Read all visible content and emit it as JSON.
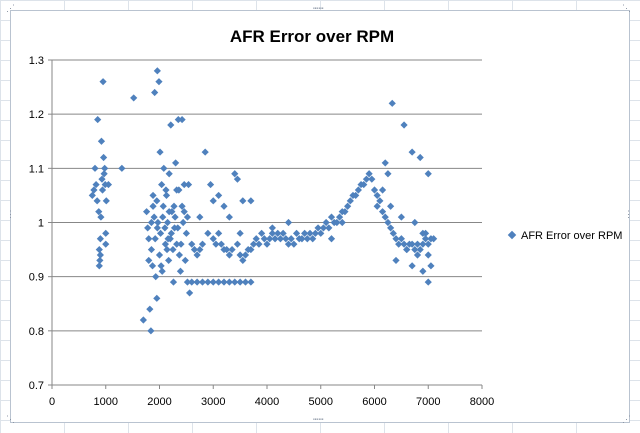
{
  "chart_data": {
    "type": "scatter",
    "title": "AFR Error over RPM",
    "xlabel": "",
    "ylabel": "",
    "xlim": [
      0,
      8000
    ],
    "ylim": [
      0.7,
      1.3
    ],
    "x_ticks": [
      "0",
      "1000",
      "2000",
      "3000",
      "4000",
      "5000",
      "6000",
      "7000",
      "8000"
    ],
    "y_ticks": [
      "0.7",
      "0.8",
      "0.9",
      "1",
      "1.1",
      "1.2",
      "1.3"
    ],
    "grid": "horizontal",
    "legend_position": "right",
    "color": "#4f81bd",
    "marker": "diamond",
    "series": [
      {
        "name": "AFR Error over RPM",
        "points": [
          [
            750,
            1.05
          ],
          [
            780,
            1.06
          ],
          [
            800,
            1.1
          ],
          [
            820,
            1.07
          ],
          [
            840,
            1.04
          ],
          [
            850,
            1.19
          ],
          [
            870,
            1.02
          ],
          [
            880,
            0.95
          ],
          [
            890,
            0.93
          ],
          [
            900,
            0.94
          ],
          [
            910,
            1.01
          ],
          [
            920,
            1.15
          ],
          [
            930,
            1.08
          ],
          [
            940,
            1.06
          ],
          [
            950,
            1.26
          ],
          [
            960,
            1.12
          ],
          [
            970,
            1.09
          ],
          [
            980,
            1.1
          ],
          [
            990,
            1.07
          ],
          [
            1000,
            0.98
          ],
          [
            1010,
            1.04
          ],
          [
            1050,
            1.07
          ],
          [
            1300,
            1.1
          ],
          [
            1520,
            1.23
          ],
          [
            880,
            0.92
          ],
          [
            900,
            0.97
          ],
          [
            1000,
            0.96
          ],
          [
            1700,
            0.82
          ],
          [
            1760,
            1.02
          ],
          [
            1780,
            0.99
          ],
          [
            1800,
            0.97
          ],
          [
            1820,
            0.84
          ],
          [
            1840,
            0.8
          ],
          [
            1850,
            0.95
          ],
          [
            1870,
            0.92
          ],
          [
            1880,
            1.03
          ],
          [
            1900,
            1.01
          ],
          [
            1910,
            1.24
          ],
          [
            1930,
            0.9
          ],
          [
            1950,
            0.86
          ],
          [
            1960,
            1.28
          ],
          [
            1970,
            1.0
          ],
          [
            1990,
            1.26
          ],
          [
            2000,
            0.94
          ],
          [
            2010,
            1.13
          ],
          [
            2020,
            0.98
          ],
          [
            2040,
            1.07
          ],
          [
            2050,
            0.91
          ],
          [
            2070,
            1.03
          ],
          [
            2080,
            1.1
          ],
          [
            2100,
            0.99
          ],
          [
            2110,
            0.96
          ],
          [
            2130,
            1.05
          ],
          [
            2150,
            1.0
          ],
          [
            2170,
            0.93
          ],
          [
            2180,
            1.09
          ],
          [
            2200,
            0.97
          ],
          [
            2210,
            1.18
          ],
          [
            2230,
            1.02
          ],
          [
            2250,
            0.95
          ],
          [
            2270,
            1.03
          ],
          [
            2290,
            1.01
          ],
          [
            2300,
            1.11
          ],
          [
            2320,
            1.06
          ],
          [
            2340,
            0.99
          ],
          [
            2350,
            1.19
          ],
          [
            2370,
            0.94
          ],
          [
            2390,
            0.91
          ],
          [
            2400,
            0.96
          ],
          [
            2420,
            1.19
          ],
          [
            2440,
            1.0
          ],
          [
            2460,
            1.07
          ],
          [
            2480,
            0.93
          ],
          [
            2500,
            0.98
          ],
          [
            2520,
            0.89
          ],
          [
            2540,
            1.07
          ],
          [
            2560,
            0.87
          ],
          [
            1800,
            0.93
          ],
          [
            1880,
            1.05
          ],
          [
            1960,
            0.99
          ],
          [
            2060,
            1.01
          ],
          [
            2160,
            0.97
          ],
          [
            2260,
            0.89
          ],
          [
            2360,
            1.06
          ],
          [
            2460,
            1.02
          ],
          [
            1850,
            1.0
          ],
          [
            1950,
            1.04
          ],
          [
            2030,
            0.92
          ],
          [
            2120,
            1.06
          ],
          [
            2220,
            0.98
          ],
          [
            2320,
            0.96
          ],
          [
            2420,
            1.03
          ],
          [
            2520,
            1.01
          ],
          [
            1920,
            0.97
          ],
          [
            2140,
            0.95
          ],
          [
            2280,
            0.99
          ],
          [
            2180,
            1.02
          ],
          [
            2600,
            0.96
          ],
          [
            2650,
            0.95
          ],
          [
            2700,
            0.94
          ],
          [
            2750,
            0.95
          ],
          [
            2800,
            0.96
          ],
          [
            2850,
            1.13
          ],
          [
            2900,
            0.98
          ],
          [
            2950,
            1.07
          ],
          [
            3000,
            0.97
          ],
          [
            3050,
            0.96
          ],
          [
            3100,
            1.05
          ],
          [
            3150,
            0.96
          ],
          [
            3200,
            0.95
          ],
          [
            3250,
            0.95
          ],
          [
            3300,
            0.94
          ],
          [
            3350,
            0.95
          ],
          [
            3400,
            1.09
          ],
          [
            3450,
            0.96
          ],
          [
            3500,
            0.94
          ],
          [
            3550,
            1.04
          ],
          [
            3600,
            0.94
          ],
          [
            3650,
            0.95
          ],
          [
            3700,
            0.95
          ],
          [
            3750,
            0.96
          ],
          [
            3800,
            0.97
          ],
          [
            3850,
            0.96
          ],
          [
            3900,
            0.98
          ],
          [
            3950,
            0.97
          ],
          [
            4000,
            0.96
          ],
          [
            4050,
            0.97
          ],
          [
            4100,
            0.98
          ],
          [
            4150,
            0.97
          ],
          [
            4200,
            0.98
          ],
          [
            4250,
            0.97
          ],
          [
            4300,
            0.98
          ],
          [
            4350,
            0.97
          ],
          [
            4400,
            0.96
          ],
          [
            4450,
            0.97
          ],
          [
            4500,
            0.96
          ],
          [
            4550,
            0.98
          ],
          [
            4600,
            0.97
          ],
          [
            4650,
            0.97
          ],
          [
            4700,
            0.98
          ],
          [
            4750,
            0.97
          ],
          [
            4800,
            0.98
          ],
          [
            4850,
            0.97
          ],
          [
            4900,
            0.98
          ],
          [
            4950,
            0.99
          ],
          [
            5000,
            0.98
          ],
          [
            5050,
            0.99
          ],
          [
            5100,
            1.0
          ],
          [
            5150,
            0.99
          ],
          [
            5200,
            1.01
          ],
          [
            5250,
            1.0
          ],
          [
            5300,
            1.0
          ],
          [
            5350,
            1.01
          ],
          [
            5400,
            1.02
          ],
          [
            5450,
            1.02
          ],
          [
            5500,
            1.03
          ],
          [
            5550,
            1.04
          ],
          [
            5600,
            1.05
          ],
          [
            5650,
            1.05
          ],
          [
            5700,
            1.06
          ],
          [
            5750,
            1.07
          ],
          [
            5800,
            1.07
          ],
          [
            5850,
            1.08
          ],
          [
            5900,
            1.09
          ],
          [
            5950,
            1.08
          ],
          [
            2600,
            0.89
          ],
          [
            2700,
            0.89
          ],
          [
            2800,
            0.89
          ],
          [
            2900,
            0.89
          ],
          [
            3000,
            0.89
          ],
          [
            3100,
            0.89
          ],
          [
            3200,
            0.89
          ],
          [
            3300,
            0.89
          ],
          [
            3400,
            0.89
          ],
          [
            3500,
            0.89
          ],
          [
            3600,
            0.89
          ],
          [
            3700,
            0.89
          ],
          [
            3000,
            1.04
          ],
          [
            3200,
            1.03
          ],
          [
            3450,
            1.08
          ],
          [
            3100,
            0.98
          ],
          [
            3300,
            1.01
          ],
          [
            3500,
            0.98
          ],
          [
            3700,
            1.04
          ],
          [
            4100,
            0.99
          ],
          [
            4400,
            1.0
          ],
          [
            5200,
            0.97
          ],
          [
            5400,
            1.0
          ],
          [
            2750,
            1.01
          ],
          [
            3550,
            0.93
          ],
          [
            6000,
            1.06
          ],
          [
            6050,
            1.05
          ],
          [
            6100,
            1.04
          ],
          [
            6150,
            1.02
          ],
          [
            6200,
            1.01
          ],
          [
            6250,
            1.0
          ],
          [
            6300,
            0.99
          ],
          [
            6350,
            0.98
          ],
          [
            6400,
            0.97
          ],
          [
            6450,
            0.96
          ],
          [
            6500,
            0.97
          ],
          [
            6550,
            0.96
          ],
          [
            6600,
            0.95
          ],
          [
            6650,
            0.96
          ],
          [
            6700,
            0.96
          ],
          [
            6750,
            0.95
          ],
          [
            6800,
            0.96
          ],
          [
            6850,
            0.95
          ],
          [
            6900,
            0.96
          ],
          [
            6950,
            0.97
          ],
          [
            7000,
            0.96
          ],
          [
            7050,
            0.97
          ],
          [
            7100,
            0.97
          ],
          [
            6200,
            1.11
          ],
          [
            6330,
            1.22
          ],
          [
            6550,
            1.18
          ],
          [
            6700,
            1.13
          ],
          [
            6850,
            1.12
          ],
          [
            7000,
            1.09
          ],
          [
            6400,
            0.93
          ],
          [
            6600,
            0.95
          ],
          [
            6700,
            0.92
          ],
          [
            6800,
            0.94
          ],
          [
            6900,
            0.91
          ],
          [
            7050,
            0.92
          ],
          [
            7000,
            0.89
          ],
          [
            6300,
            1.03
          ],
          [
            6500,
            1.01
          ],
          [
            6750,
            1.0
          ],
          [
            6950,
            0.98
          ],
          [
            6150,
            1.06
          ],
          [
            6250,
            1.09
          ],
          [
            6050,
            1.03
          ],
          [
            6900,
            0.98
          ],
          [
            7000,
            0.94
          ]
        ]
      }
    ]
  }
}
